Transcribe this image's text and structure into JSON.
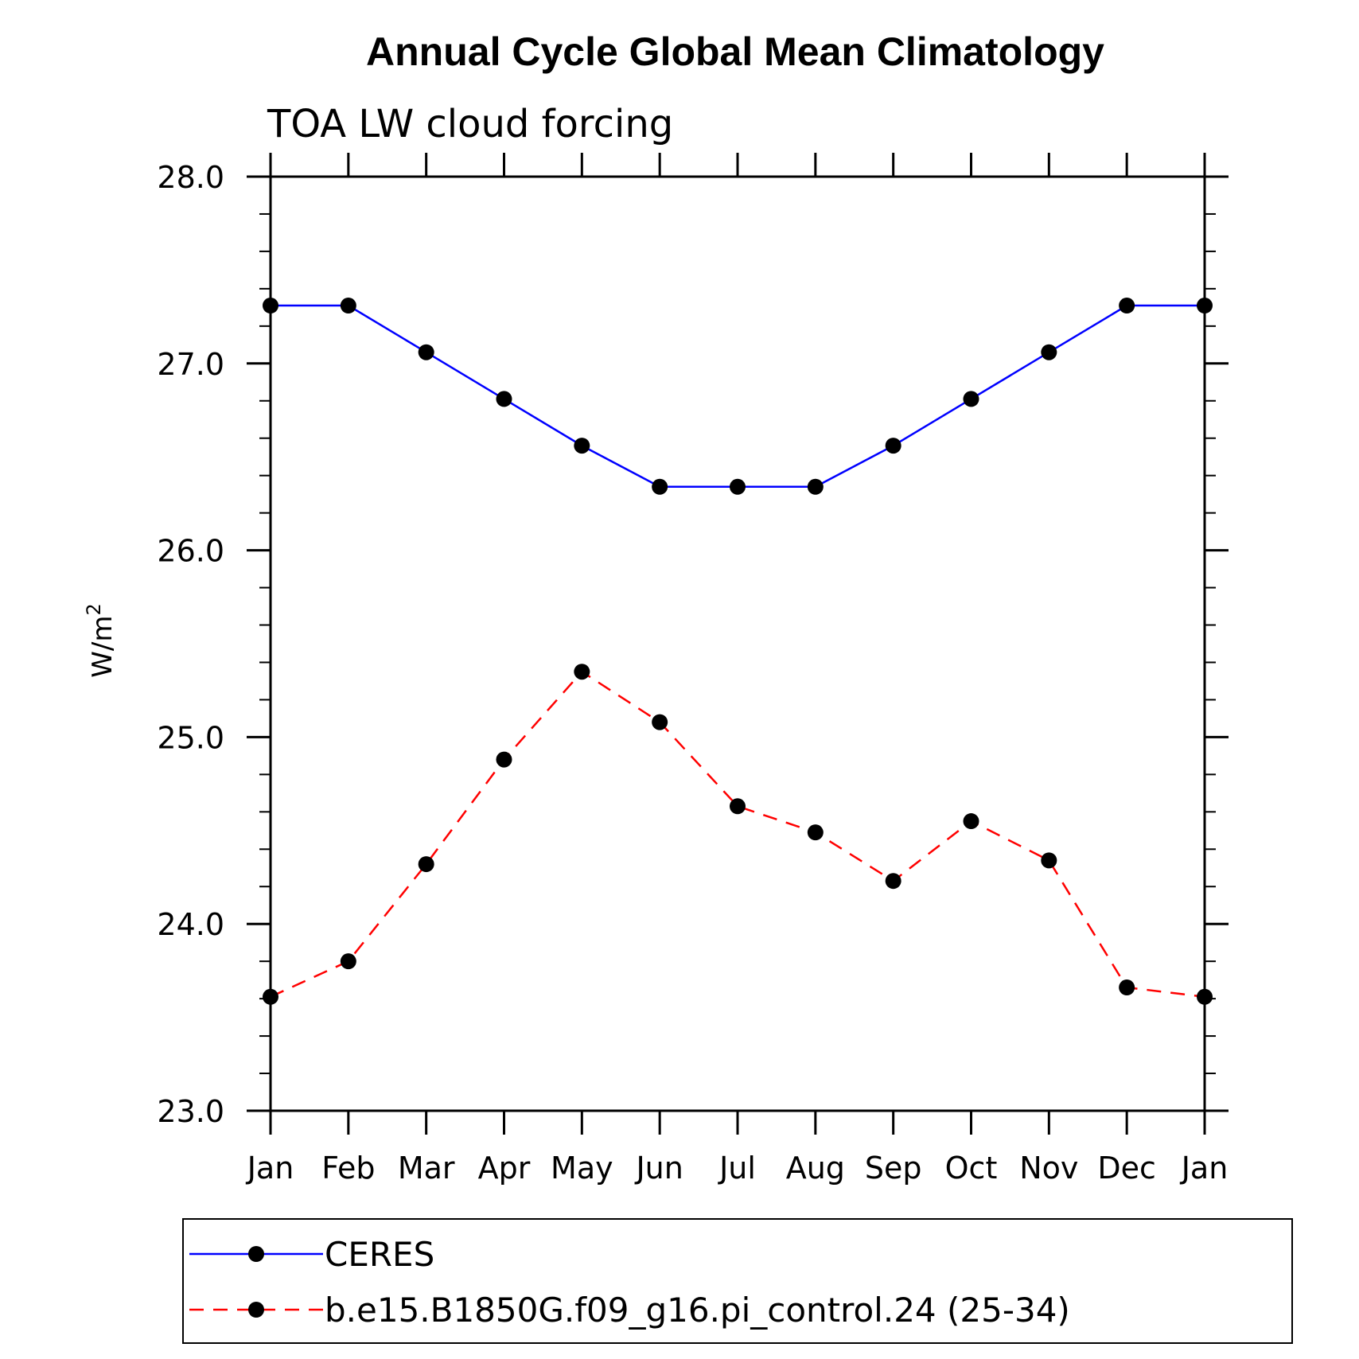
{
  "chart_data": {
    "type": "line",
    "title": "Annual Cycle Global Mean Climatology",
    "subtitle": "TOA LW cloud forcing",
    "xlabel": "",
    "ylabel": "W/m",
    "ylabel_superscript": "2",
    "ylim": [
      23.0,
      28.0
    ],
    "y_major_ticks": [
      23.0,
      24.0,
      25.0,
      26.0,
      27.0,
      28.0
    ],
    "y_tick_labels": [
      "23.0",
      "24.0",
      "25.0",
      "26.0",
      "27.0",
      "28.0"
    ],
    "y_minor_step": 0.2,
    "categories": [
      "Jan",
      "Feb",
      "Mar",
      "Apr",
      "May",
      "Jun",
      "Jul",
      "Aug",
      "Sep",
      "Oct",
      "Nov",
      "Dec",
      "Jan"
    ],
    "series": [
      {
        "name": "CERES",
        "color": "#0000ff",
        "dash": "solid",
        "values": [
          27.31,
          27.31,
          27.06,
          26.81,
          26.56,
          26.34,
          26.34,
          26.34,
          26.56,
          26.81,
          27.06,
          27.31,
          27.31
        ]
      },
      {
        "name": "b.e15.B1850G.f09_g16.pi_control.24 (25-34)",
        "color": "#ff0000",
        "dash": "dashed",
        "values": [
          23.61,
          23.8,
          24.32,
          24.88,
          25.35,
          25.08,
          24.63,
          24.49,
          24.23,
          24.55,
          24.34,
          23.66,
          23.61
        ]
      }
    ],
    "legend_position": "bottom",
    "marker_color": "#000000"
  }
}
